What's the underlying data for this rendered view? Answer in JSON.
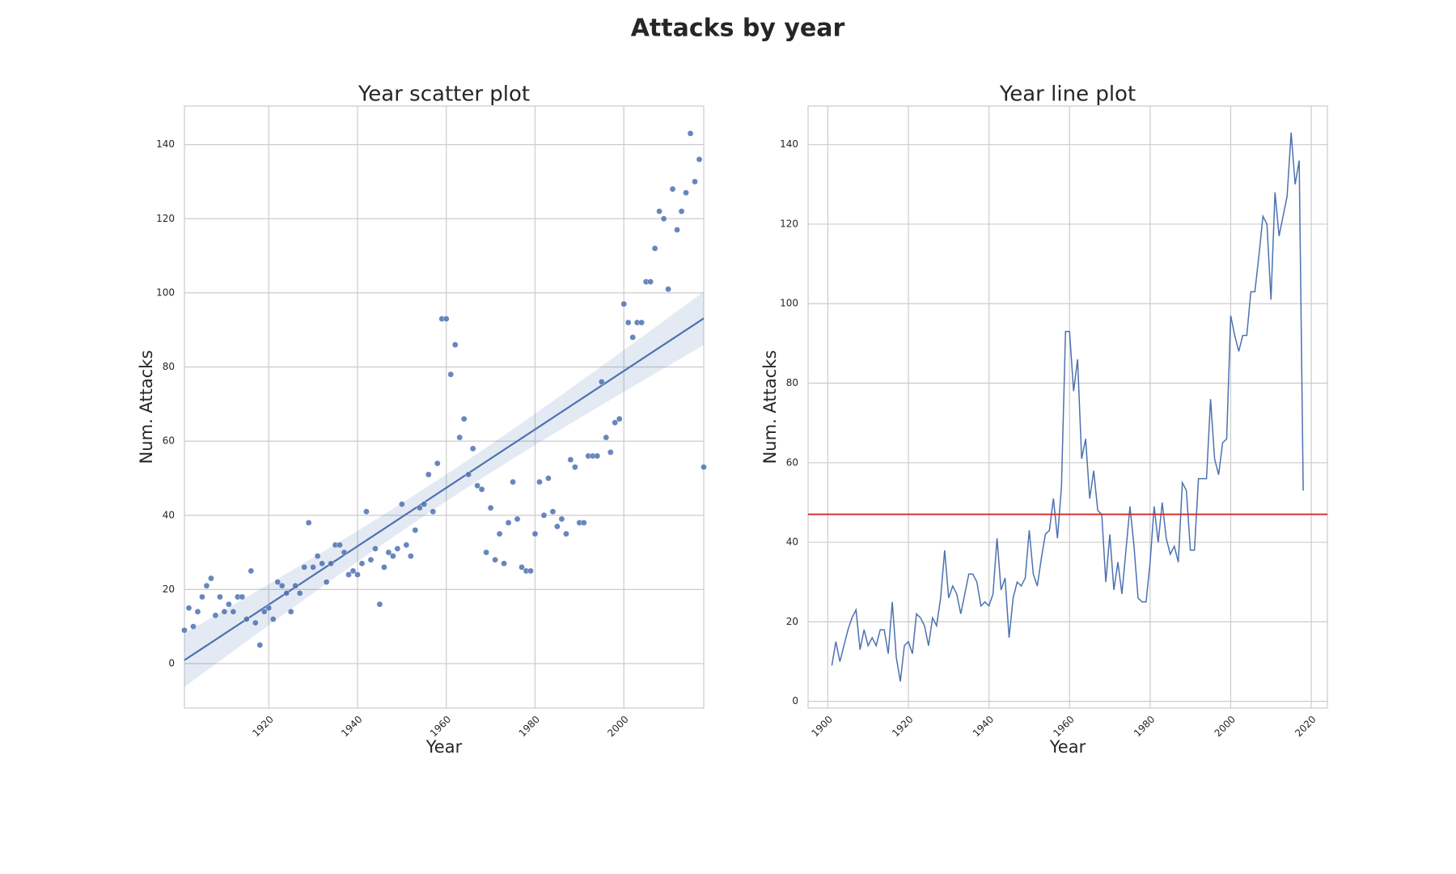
{
  "title": "Attacks by year",
  "chart_data": [
    {
      "type": "scatter",
      "title": "Year scatter plot",
      "x_label": "Year",
      "y_label": "Num. Attacks",
      "x": [
        1901,
        1902,
        1903,
        1904,
        1905,
        1906,
        1907,
        1908,
        1909,
        1910,
        1911,
        1912,
        1913,
        1914,
        1915,
        1916,
        1917,
        1918,
        1919,
        1920,
        1921,
        1922,
        1923,
        1924,
        1925,
        1926,
        1927,
        1928,
        1929,
        1930,
        1931,
        1932,
        1933,
        1934,
        1935,
        1936,
        1937,
        1938,
        1939,
        1940,
        1941,
        1942,
        1943,
        1944,
        1945,
        1946,
        1947,
        1948,
        1949,
        1950,
        1951,
        1952,
        1953,
        1954,
        1955,
        1956,
        1957,
        1958,
        1959,
        1960,
        1961,
        1962,
        1963,
        1964,
        1965,
        1966,
        1967,
        1968,
        1969,
        1970,
        1971,
        1972,
        1973,
        1974,
        1975,
        1976,
        1977,
        1978,
        1979,
        1980,
        1981,
        1982,
        1983,
        1984,
        1985,
        1986,
        1987,
        1988,
        1989,
        1990,
        1991,
        1992,
        1993,
        1994,
        1995,
        1996,
        1997,
        1998,
        1999,
        2000,
        2001,
        2002,
        2003,
        2004,
        2005,
        2006,
        2007,
        2008,
        2009,
        2010,
        2011,
        2012,
        2013,
        2014,
        2015,
        2016,
        2017,
        2018
      ],
      "values": [
        9,
        15,
        10,
        14,
        18,
        21,
        23,
        13,
        18,
        14,
        16,
        14,
        18,
        18,
        12,
        25,
        11,
        5,
        14,
        15,
        12,
        22,
        21,
        19,
        14,
        21,
        19,
        26,
        38,
        26,
        29,
        27,
        22,
        27,
        32,
        32,
        30,
        24,
        25,
        24,
        27,
        41,
        28,
        31,
        16,
        26,
        30,
        29,
        31,
        43,
        32,
        29,
        36,
        42,
        43,
        51,
        41,
        54,
        93,
        93,
        78,
        86,
        61,
        66,
        51,
        58,
        48,
        47,
        30,
        42,
        28,
        35,
        27,
        38,
        49,
        39,
        26,
        25,
        25,
        35,
        49,
        40,
        50,
        41,
        37,
        39,
        35,
        55,
        53,
        38,
        38,
        56,
        56,
        56,
        76,
        61,
        57,
        65,
        66,
        97,
        92,
        88,
        92,
        92,
        103,
        103,
        112,
        122,
        120,
        101,
        128,
        117,
        122,
        127,
        143,
        130,
        136,
        53
      ],
      "color": "#4c72b0",
      "regression": true,
      "xlim": [
        1901,
        2018
      ],
      "ylim": [
        -12,
        150.4
      ],
      "xticks": [
        1920,
        1940,
        1960,
        1980,
        2000
      ],
      "yticks": [
        0,
        20,
        40,
        60,
        80,
        100,
        120,
        140
      ],
      "grid": true
    },
    {
      "type": "line",
      "title": "Year line plot",
      "x_label": "Year",
      "y_label": "Num. Attacks",
      "x": [
        1901,
        1902,
        1903,
        1904,
        1905,
        1906,
        1907,
        1908,
        1909,
        1910,
        1911,
        1912,
        1913,
        1914,
        1915,
        1916,
        1917,
        1918,
        1919,
        1920,
        1921,
        1922,
        1923,
        1924,
        1925,
        1926,
        1927,
        1928,
        1929,
        1930,
        1931,
        1932,
        1933,
        1934,
        1935,
        1936,
        1937,
        1938,
        1939,
        1940,
        1941,
        1942,
        1943,
        1944,
        1945,
        1946,
        1947,
        1948,
        1949,
        1950,
        1951,
        1952,
        1953,
        1954,
        1955,
        1956,
        1957,
        1958,
        1959,
        1960,
        1961,
        1962,
        1963,
        1964,
        1965,
        1966,
        1967,
        1968,
        1969,
        1970,
        1971,
        1972,
        1973,
        1974,
        1975,
        1976,
        1977,
        1978,
        1979,
        1980,
        1981,
        1982,
        1983,
        1984,
        1985,
        1986,
        1987,
        1988,
        1989,
        1990,
        1991,
        1992,
        1993,
        1994,
        1995,
        1996,
        1997,
        1998,
        1999,
        2000,
        2001,
        2002,
        2003,
        2004,
        2005,
        2006,
        2007,
        2008,
        2009,
        2010,
        2011,
        2012,
        2013,
        2014,
        2015,
        2016,
        2017,
        2018
      ],
      "values": [
        9,
        15,
        10,
        14,
        18,
        21,
        23,
        13,
        18,
        14,
        16,
        14,
        18,
        18,
        12,
        25,
        11,
        5,
        14,
        15,
        12,
        22,
        21,
        19,
        14,
        21,
        19,
        26,
        38,
        26,
        29,
        27,
        22,
        27,
        32,
        32,
        30,
        24,
        25,
        24,
        27,
        41,
        28,
        31,
        16,
        26,
        30,
        29,
        31,
        43,
        32,
        29,
        36,
        42,
        43,
        51,
        41,
        54,
        93,
        93,
        78,
        86,
        61,
        66,
        51,
        58,
        48,
        47,
        30,
        42,
        28,
        35,
        27,
        38,
        49,
        39,
        26,
        25,
        25,
        35,
        49,
        40,
        50,
        41,
        37,
        39,
        35,
        55,
        53,
        38,
        38,
        56,
        56,
        56,
        76,
        61,
        57,
        65,
        66,
        97,
        92,
        88,
        92,
        92,
        103,
        103,
        112,
        122,
        120,
        101,
        128,
        117,
        122,
        127,
        143,
        130,
        136,
        53
      ],
      "color": "#4c72b0",
      "mean_line": true,
      "mean_line_color": "#d62728",
      "xlim": [
        1895.1,
        2024.0
      ],
      "ylim": [
        -1.7,
        149.7
      ],
      "xticks": [
        1900,
        1920,
        1940,
        1960,
        1980,
        2000,
        2020
      ],
      "yticks": [
        0,
        20,
        40,
        60,
        80,
        100,
        120,
        140
      ],
      "grid": true
    }
  ]
}
